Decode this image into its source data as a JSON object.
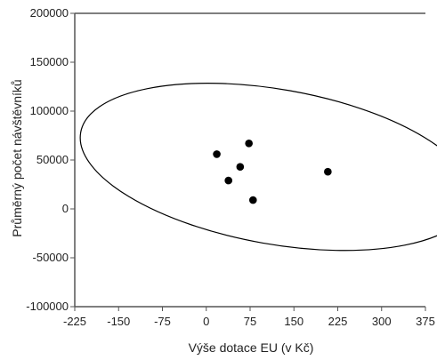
{
  "chart_data": {
    "type": "scatter",
    "title": "",
    "xlabel": "Výše dotace EU (v Kč)",
    "ylabel": "Průměrný počet návštěvníků",
    "xlim": [
      -225,
      375
    ],
    "ylim": [
      -100000,
      200000
    ],
    "x_ticks": [
      -225,
      -150,
      -75,
      0,
      75,
      150,
      225,
      300,
      375
    ],
    "x_tick_labels": [
      "-225",
      "-150",
      "-75",
      "0",
      "75",
      "150",
      "225",
      "300",
      "375"
    ],
    "y_ticks": [
      -100000,
      -50000,
      0,
      50000,
      100000,
      150000,
      200000
    ],
    "y_tick_labels": [
      "-100000",
      "-50000",
      "0",
      "50000",
      "100000",
      "150000",
      "200000"
    ],
    "grid": false,
    "points": [
      {
        "x": 18,
        "y": 56000
      },
      {
        "x": 38,
        "y": 29000
      },
      {
        "x": 58,
        "y": 43000
      },
      {
        "x": 73,
        "y": 67000
      },
      {
        "x": 80,
        "y": 9000
      },
      {
        "x": 208,
        "y": 38000
      }
    ],
    "confidence_ellipse": {
      "center": [
        120,
        43000
      ],
      "x_range": [
        -220,
        460
      ],
      "y_range": [
        -47000,
        125000
      ],
      "tilt_deg": 10,
      "color": "#000000"
    },
    "point_color": "#000000",
    "axis_color": "#555555"
  }
}
